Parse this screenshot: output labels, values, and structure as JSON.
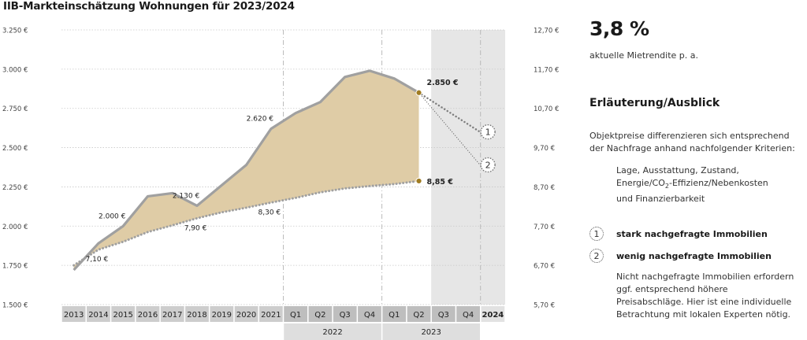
{
  "title": "IIB-Markteinschätzung Wohnungen für 2023/2024",
  "side": {
    "value": "3,8 %",
    "caption": "aktuelle Mietrendite p. a.",
    "heading": "Erläuterung/Ausblick",
    "intro": "Objektpreise differenzieren sich entsprechend der Nachfrage anhand nachfolgender Kriterien:",
    "criteria_line1": "Lage, Ausstattung, Zustand,",
    "criteria_line2_pre": "Energie/CO",
    "criteria_line2_sub": "2",
    "criteria_line2_post": "-Effizienz/Nebenkosten",
    "criteria_line3": "und Finanzierbarkeit",
    "legend": [
      {
        "badge": "1",
        "label": "stark nachgefragte Immobilien"
      },
      {
        "badge": "2",
        "label": "wenig nachgefragte Immobilien"
      }
    ],
    "note": "Nicht nachgefragte Immobilien erfordern ggf. entsprechend höhere Preisabschläge. Hier ist eine individuelle Betrachtung mit lokalen Experten nötig."
  },
  "colors": {
    "price_line": "#a0a0a0",
    "factor_line": "#a0a0a0",
    "fill": "#dfcca6",
    "marker": "#a07c22",
    "shade": "#e6e6e6",
    "axis_box": "#cdcdcd",
    "axis_box_dark": "#bebebe"
  },
  "chart_data": {
    "type": "line",
    "title": "IIB-Markteinschätzung Wohnungen für 2023/2024",
    "categories": [
      "2013",
      "2014",
      "2015",
      "2016",
      "2017",
      "2018",
      "2019",
      "2020",
      "2021",
      "Q1",
      "Q2",
      "Q3",
      "Q4",
      "Q1",
      "Q2",
      "Q3",
      "Q4",
      "2024"
    ],
    "year_groups": [
      {
        "label": "2022",
        "from": 9,
        "to": 12
      },
      {
        "label": "2023",
        "from": 13,
        "to": 16
      }
    ],
    "y_left": {
      "ticks": [
        "1.500 €",
        "1.750 €",
        "2.000 €",
        "2.250 €",
        "2.500 €",
        "2.750 €",
        "3.000 €",
        "3.250 €"
      ],
      "range": [
        1500,
        3250
      ]
    },
    "y_right": {
      "ticks": [
        "5,70 €",
        "6,70 €",
        "7,70 €",
        "8,70 €",
        "9,70 €",
        "10,70 €",
        "11,70 €",
        "12,70 €"
      ],
      "range": [
        5.7,
        12.7
      ]
    },
    "series": [
      {
        "axis": "left",
        "x": [
          0,
          1,
          2,
          3,
          4,
          5,
          6,
          7,
          8,
          9,
          10,
          11,
          12,
          13,
          14
        ],
        "values": [
          1720,
          1890,
          2000,
          2190,
          2210,
          2130,
          2260,
          2390,
          2620,
          2720,
          2790,
          2950,
          2990,
          2940,
          2850
        ]
      },
      {
        "axis": "right",
        "x": [
          0,
          1,
          2,
          3,
          4,
          5,
          6,
          7,
          8,
          9,
          10,
          11,
          12,
          13,
          14
        ],
        "values": [
          6.7,
          7.1,
          7.3,
          7.55,
          7.72,
          7.9,
          8.05,
          8.17,
          8.3,
          8.42,
          8.56,
          8.66,
          8.72,
          8.77,
          8.85
        ]
      }
    ],
    "forecast": [
      {
        "badge": "1",
        "x_from": 14,
        "y_from": 2850,
        "x_to": 16.8,
        "y_to": 2600
      },
      {
        "badge": "2",
        "x_from": 14,
        "y_from": 2850,
        "x_to": 16.8,
        "y_to": 2390
      }
    ],
    "shaded_from": 15,
    "data_labels": [
      {
        "text": "2.000 €",
        "x": 2,
        "v": 2000,
        "series": 0
      },
      {
        "text": "2.130 €",
        "x": 5,
        "v": 2130,
        "series": 0
      },
      {
        "text": "2.620 €",
        "x": 8,
        "v": 2620,
        "series": 0
      },
      {
        "text": "2.850 €",
        "x": 14,
        "v": 2850,
        "series": 0,
        "bold": true
      },
      {
        "text": "7,10 €",
        "x": 1,
        "v": 7.1,
        "series": 1
      },
      {
        "text": "7,90 €",
        "x": 5,
        "v": 7.9,
        "series": 1
      },
      {
        "text": "8,30 €",
        "x": 8,
        "v": 8.3,
        "series": 1
      },
      {
        "text": "8,85 €",
        "x": 14,
        "v": 8.85,
        "series": 1,
        "bold": true
      }
    ],
    "grid": true
  }
}
